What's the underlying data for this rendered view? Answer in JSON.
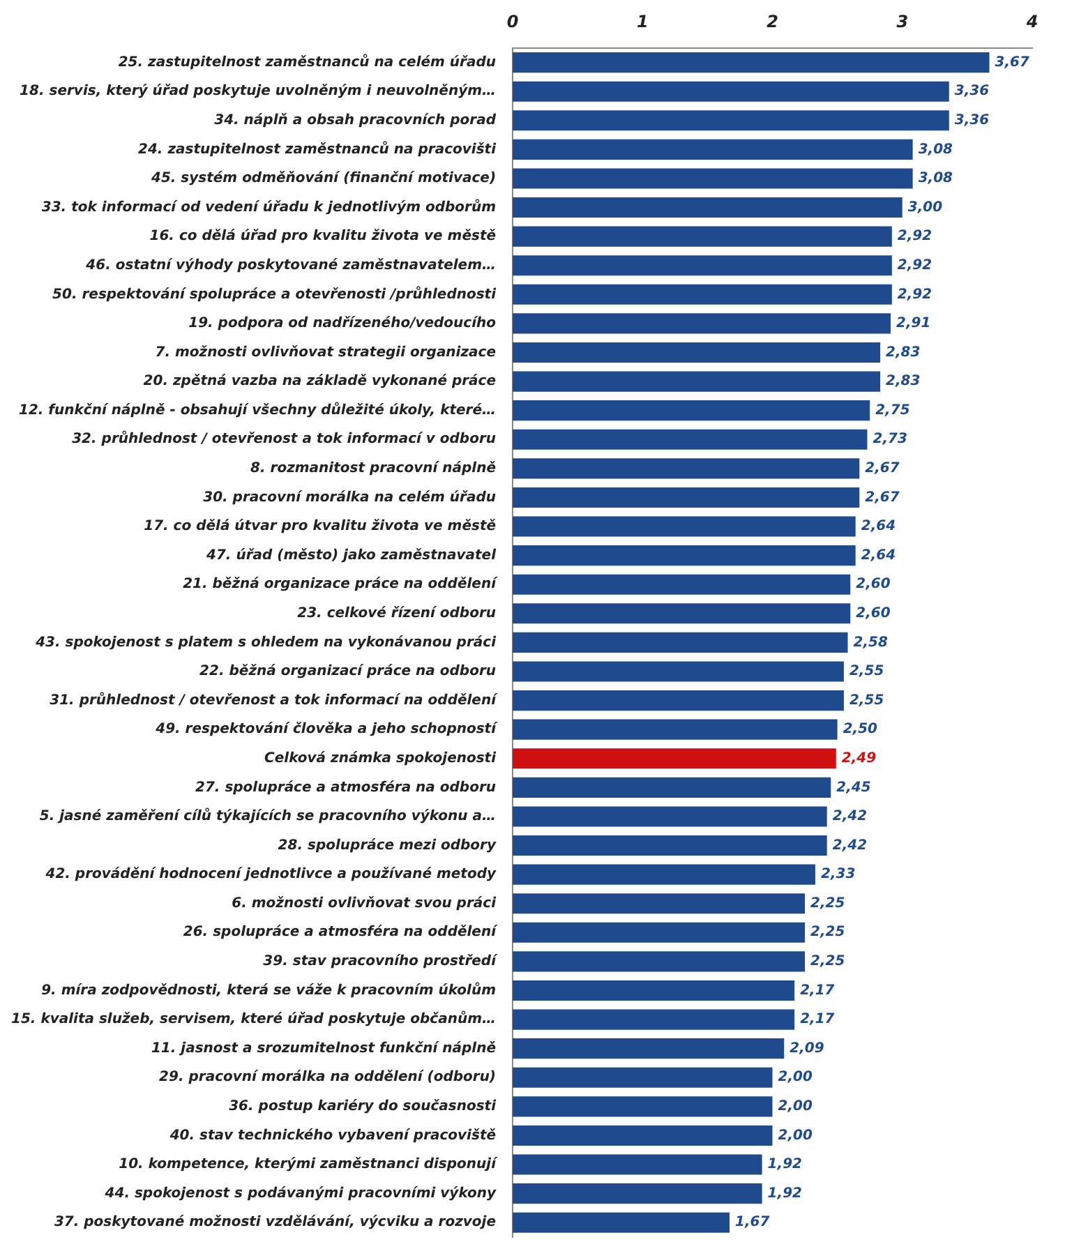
{
  "chart_data": {
    "type": "bar",
    "orientation": "horizontal",
    "categories": [
      "25. zastupitelnost zaměstnanců na celém úřadu",
      "18. servis, který úřad poskytuje uvolněným i neuvolněným…",
      "34. náplň a obsah pracovních porad",
      "24. zastupitelnost zaměstnanců na pracovišti",
      "45. systém odměňování (finanční motivace)",
      "33. tok informací od vedení úřadu k jednotlivým odborům",
      "16. co dělá úřad pro kvalitu života ve městě",
      "46. ostatní výhody poskytované zaměstnavatelem…",
      "50. respektování spolupráce a otevřenosti /průhlednosti",
      "19. podpora od nadřízeného/vedoucího",
      "7. možnosti ovlivňovat strategii organizace",
      "20. zpětná vazba na základě vykonané práce",
      "12. funkční náplně - obsahují všechny důležité úkoly, které…",
      "32. průhlednost / otevřenost a tok informací v odboru",
      "8. rozmanitost pracovní náplně",
      "30. pracovní morálka na celém úřadu",
      "17. co dělá útvar pro kvalitu života ve městě",
      "47. úřad (město) jako zaměstnavatel",
      "21. běžná organizace práce na oddělení",
      "23. celkové řízení odboru",
      "43. spokojenost s platem s ohledem na vykonávanou práci",
      "22. běžná organizací práce na odboru",
      "31. průhlednost / otevřenost a tok informací na oddělení",
      "49. respektování člověka a jeho schopností",
      "Celková známka spokojenosti",
      "27. spolupráce a atmosféra na odboru",
      "5. jasné zaměření cílů týkajících se pracovního výkonu a…",
      "28. spolupráce mezi odbory",
      "42. provádění hodnocení jednotlivce a používané metody",
      "6. možnosti ovlivňovat svou práci",
      "26. spolupráce a atmosféra na oddělení",
      "39. stav pracovního prostředí",
      "9. míra zodpovědnosti, která se váže k pracovním úkolům",
      "15. kvalita služeb, servisem, které úřad poskytuje občanům…",
      "11. jasnost a srozumitelnost funkční náplně",
      "29. pracovní morálka na oddělení (odboru)",
      "36. postup kariéry do současnosti",
      "40. stav technického vybavení pracoviště",
      "10. kompetence, kterými zaměstnanci disponují",
      "44. spokojenost s podávanými pracovními výkony",
      "37. poskytované možnosti vzdělávání, výcviku a rozvoje"
    ],
    "values": [
      3.67,
      3.36,
      3.36,
      3.08,
      3.08,
      3.0,
      2.92,
      2.92,
      2.92,
      2.91,
      2.83,
      2.83,
      2.75,
      2.73,
      2.67,
      2.67,
      2.64,
      2.64,
      2.6,
      2.6,
      2.58,
      2.55,
      2.55,
      2.5,
      2.49,
      2.45,
      2.42,
      2.42,
      2.33,
      2.25,
      2.25,
      2.25,
      2.17,
      2.17,
      2.09,
      2.0,
      2.0,
      2.0,
      1.92,
      1.92,
      1.67
    ],
    "value_labels": [
      "3,67",
      "3,36",
      "3,36",
      "3,08",
      "3,08",
      "3,00",
      "2,92",
      "2,92",
      "2,92",
      "2,91",
      "2,83",
      "2,83",
      "2,75",
      "2,73",
      "2,67",
      "2,67",
      "2,64",
      "2,64",
      "2,60",
      "2,60",
      "2,58",
      "2,55",
      "2,55",
      "2,50",
      "2,49",
      "2,45",
      "2,42",
      "2,42",
      "2,33",
      "2,25",
      "2,25",
      "2,25",
      "2,17",
      "2,17",
      "2,09",
      "2,00",
      "2,00",
      "2,00",
      "1,92",
      "1,92",
      "1,67"
    ],
    "colors": [
      "#1f4b8e",
      "#1f4b8e",
      "#1f4b8e",
      "#1f4b8e",
      "#1f4b8e",
      "#1f4b8e",
      "#1f4b8e",
      "#1f4b8e",
      "#1f4b8e",
      "#1f4b8e",
      "#1f4b8e",
      "#1f4b8e",
      "#1f4b8e",
      "#1f4b8e",
      "#1f4b8e",
      "#1f4b8e",
      "#1f4b8e",
      "#1f4b8e",
      "#1f4b8e",
      "#1f4b8e",
      "#1f4b8e",
      "#1f4b8e",
      "#1f4b8e",
      "#1f4b8e",
      "#d01010",
      "#1f4b8e",
      "#1f4b8e",
      "#1f4b8e",
      "#1f4b8e",
      "#1f4b8e",
      "#1f4b8e",
      "#1f4b8e",
      "#1f4b8e",
      "#1f4b8e",
      "#1f4b8e",
      "#1f4b8e",
      "#1f4b8e",
      "#1f4b8e",
      "#1f4b8e",
      "#1f4b8e",
      "#1f4b8e"
    ],
    "xlim": [
      0,
      4
    ],
    "xticks": [
      0,
      1,
      2,
      3,
      4
    ],
    "grid": false,
    "legend": false
  }
}
